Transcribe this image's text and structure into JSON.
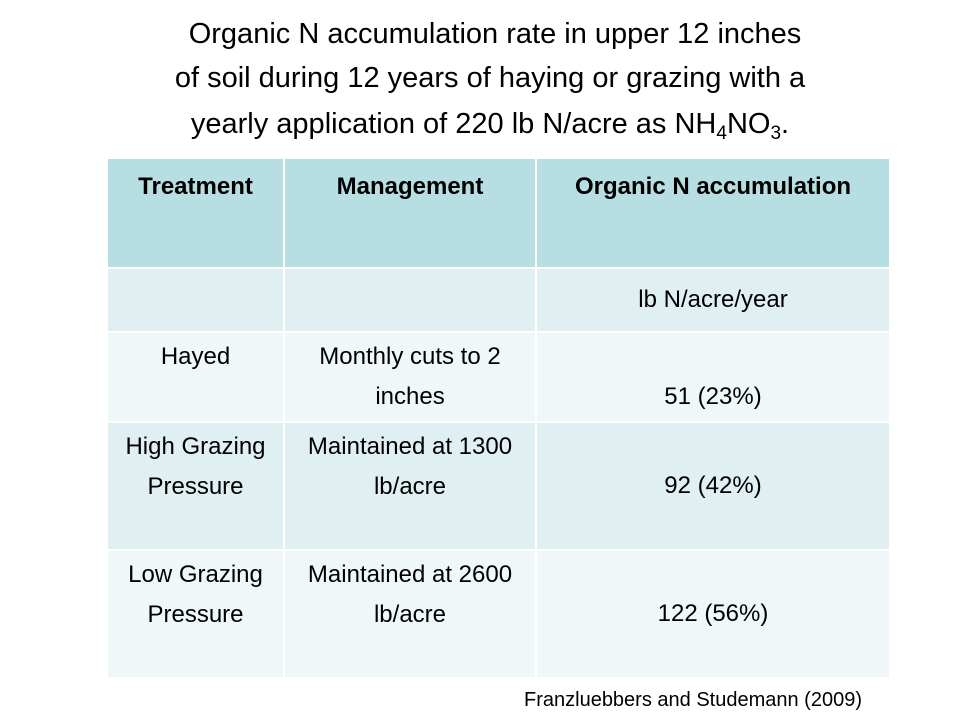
{
  "title": {
    "line1": "Organic N accumulation rate in upper 12 inches",
    "line2": "of soil during 12 years of haying or grazing with a",
    "line3_pre": "yearly application of 220 lb N/acre as NH",
    "sub1": "4",
    "line3_mid": "NO",
    "sub2": "3",
    "line3_post": "."
  },
  "table": {
    "headers": [
      "Treatment",
      "Management",
      "Organic N accumulation"
    ],
    "units_row": [
      "",
      "",
      "lb N/acre/year"
    ],
    "rows": [
      [
        "Hayed",
        "Monthly cuts to 2 inches",
        "51 (23%)"
      ],
      [
        "High Grazing Pressure",
        "Maintained at 1300 lb/acre",
        "92 (42%)"
      ],
      [
        "Low Grazing Pressure",
        "Maintained at 2600 lb/acre",
        "122 (56%)"
      ]
    ]
  },
  "citation": "Franzluebbers and Studemann (2009)"
}
